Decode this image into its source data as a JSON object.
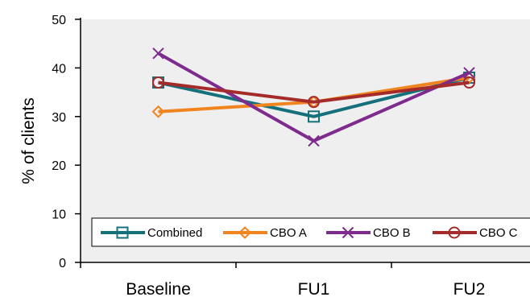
{
  "chart_data": {
    "type": "line",
    "title": "",
    "xlabel": "",
    "ylabel": "% of clients",
    "categories": [
      "Baseline",
      "FU1",
      "FU2"
    ],
    "ylim": [
      0,
      50
    ],
    "yticks": [
      0,
      10,
      20,
      30,
      40,
      50
    ],
    "grid": false,
    "legend_position": "bottom",
    "series": [
      {
        "name": "Combined",
        "values": [
          37,
          30,
          38
        ],
        "color": "#14707A",
        "marker": "square"
      },
      {
        "name": "CBO A",
        "values": [
          31,
          33,
          38
        ],
        "color": "#F0841E",
        "marker": "diamond"
      },
      {
        "name": "CBO B",
        "values": [
          43,
          25,
          39
        ],
        "color": "#7E2A8E",
        "marker": "x"
      },
      {
        "name": "CBO C",
        "values": [
          37,
          33,
          37
        ],
        "color": "#A52A2A",
        "marker": "circle"
      }
    ]
  }
}
